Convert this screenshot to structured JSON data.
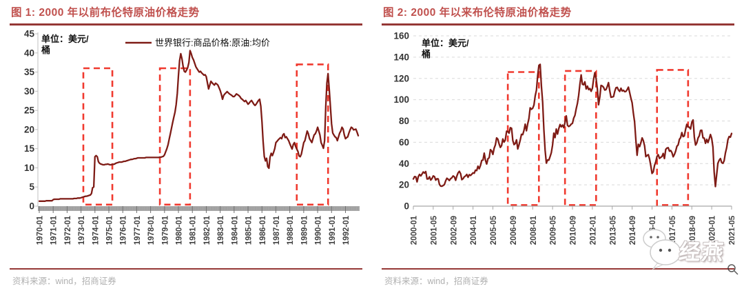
{
  "figures": [
    {
      "title": "图 1: 2000 年以前布伦特原油价格走势",
      "source": "资料来源：wind，招商证券"
    },
    {
      "title": "图 2: 2000 年以来布伦特原油价格走势",
      "source": "资料来源：wind，招商证券"
    }
  ],
  "watermark": {
    "text": "经燕"
  },
  "colors": {
    "line": "#7E1B15",
    "highlight_box": "#F0392E",
    "title_red": "#C0504D",
    "rule_red": "#953735",
    "axis_band_gray": "#A9A9A9",
    "grid_gray": "#D9D9D9",
    "label_gray": "#404040",
    "source_gray": "#B0B0B0"
  },
  "chart_data": [
    {
      "type": "line",
      "title": "图 1: 2000 年以前布伦特原油价格走势",
      "unit_line1": "单位：美元/",
      "unit_line2": "桶",
      "legend": [
        "世界银行:商品价格:原油:均价"
      ],
      "x_start": "1970-01",
      "frequency": "monthly",
      "x_tick_interval_months": 12,
      "x_tick_labels": [
        "1970-01",
        "1971-01",
        "1972-01",
        "1973-01",
        "1974-01",
        "1975-01",
        "1976-01",
        "1977-01",
        "1978-01",
        "1979-01",
        "1980-01",
        "1981-01",
        "1982-01",
        "1983-01",
        "1984-01",
        "1985-01",
        "1986-01",
        "1987-01",
        "1988-01",
        "1989-01",
        "1990-01",
        "1991-01",
        "1992-01"
      ],
      "ylim": [
        0,
        45
      ],
      "y_tick_step": 5,
      "grid": false,
      "gray_axis_band": true,
      "values": [
        1.3,
        1.3,
        1.3,
        1.3,
        1.3,
        1.3,
        1.4,
        1.4,
        1.4,
        1.4,
        1.4,
        1.4,
        1.7,
        1.8,
        1.8,
        1.8,
        1.8,
        1.8,
        1.9,
        1.9,
        1.9,
        1.9,
        1.9,
        1.9,
        1.9,
        1.9,
        1.9,
        1.9,
        1.9,
        1.9,
        2.0,
        2.0,
        2.0,
        2.1,
        2.1,
        2.1,
        2.2,
        2.3,
        2.4,
        2.5,
        2.6,
        2.6,
        2.7,
        2.8,
        2.9,
        3.3,
        4.8,
        5.0,
        12.9,
        13.2,
        12.9,
        11.6,
        11.2,
        11.0,
        10.9,
        10.8,
        10.8,
        10.9,
        10.9,
        11.0,
        10.9,
        10.8,
        10.8,
        10.9,
        10.9,
        11.0,
        11.2,
        11.3,
        11.4,
        11.5,
        11.5,
        11.5,
        11.6,
        11.7,
        11.7,
        11.8,
        11.9,
        12.0,
        12.1,
        12.2,
        12.2,
        12.3,
        12.4,
        12.4,
        12.5,
        12.6,
        12.6,
        12.6,
        12.6,
        12.6,
        12.6,
        12.6,
        12.7,
        12.7,
        12.7,
        12.7,
        12.7,
        12.7,
        12.7,
        12.7,
        12.7,
        12.7,
        12.7,
        12.7,
        12.8,
        12.8,
        12.9,
        13.0,
        13.4,
        14.2,
        15.0,
        16.0,
        17.5,
        18.9,
        20.3,
        21.8,
        23.2,
        24.5,
        26.5,
        29.5,
        34.0,
        38.0,
        39.8,
        38.5,
        36.5,
        35.2,
        35.0,
        35.5,
        36.2,
        37.5,
        40.6,
        39.8,
        38.8,
        38.2,
        37.3,
        36.4,
        35.9,
        35.4,
        35.0,
        35.2,
        34.8,
        34.5,
        34.2,
        34.3,
        33.8,
        32.2,
        30.6,
        31.6,
        32.6,
        32.2,
        31.9,
        31.6,
        32.1,
        31.9,
        31.6,
        30.9,
        30.2,
        29.2,
        27.9,
        28.9,
        29.3,
        29.6,
        29.9,
        29.6,
        29.3,
        29.1,
        28.9,
        28.6,
        28.6,
        28.9,
        29.3,
        29.1,
        28.9,
        28.6,
        28.1,
        27.9,
        27.6,
        27.3,
        27.6,
        27.1,
        26.6,
        26.9,
        27.3,
        27.6,
        27.1,
        26.6,
        26.3,
        26.6,
        27.1,
        27.6,
        27.9,
        26.1,
        22.0,
        17.0,
        13.0,
        11.8,
        12.5,
        10.3,
        9.9,
        12.8,
        13.8,
        13.2,
        14.0,
        15.0,
        16.6,
        16.9,
        17.3,
        17.6,
        17.9,
        17.6,
        18.6,
        18.9,
        17.9,
        18.1,
        17.6,
        17.1,
        16.3,
        15.6,
        14.9,
        16.1,
        16.6,
        15.6,
        14.9,
        14.3,
        13.1,
        12.9,
        13.6,
        15.1,
        16.6,
        17.1,
        18.3,
        19.6,
        18.9,
        17.6,
        17.1,
        16.6,
        17.6,
        18.6,
        18.9,
        19.6,
        20.6,
        19.6,
        18.6,
        16.6,
        15.9,
        15.1,
        17.1,
        26.1,
        32.1,
        34.6,
        30.6,
        26.1,
        21.5,
        19.1,
        18.6,
        18.1,
        17.9,
        17.1,
        18.1,
        19.1,
        19.6,
        20.6,
        20.1,
        18.6,
        17.6,
        17.9,
        18.1,
        19.1,
        19.9,
        20.6,
        20.4,
        19.9,
        20.0,
        20.1,
        19.3,
        18.4
      ],
      "highlight_boxes": [
        {
          "from": "1973-03",
          "to": "1975-04",
          "y_bottom": 0.4,
          "y_top": 36
        },
        {
          "from": "1978-09",
          "to": "1980-11",
          "y_bottom": 0.4,
          "y_top": 36
        },
        {
          "from": "1988-07",
          "to": "1990-10",
          "y_bottom": 0.4,
          "y_top": 37
        }
      ]
    },
    {
      "type": "line",
      "title": "图 2: 2000 年以来布伦特原油价格走势",
      "unit_line1": "单位：美元/",
      "unit_line2": "桶",
      "legend": [],
      "x_start": "2000-01",
      "frequency": "monthly",
      "x_tick_interval_months": 16,
      "x_tick_labels": [
        "2000-01",
        "2001-05",
        "2002-09",
        "2004-01",
        "2005-05",
        "2006-09",
        "2008-01",
        "2009-05",
        "2010-09",
        "2012-01",
        "2013-05",
        "2014-09",
        "2016-01",
        "2017-05",
        "2018-09",
        "2020-01",
        "2021-05"
      ],
      "ylim": [
        0,
        160
      ],
      "y_tick_step": 20,
      "grid": true,
      "gray_axis_band": false,
      "values": [
        25.5,
        27.8,
        27.5,
        22.8,
        27.7,
        29.8,
        28.4,
        30.1,
        32.1,
        31.0,
        32.5,
        25.5,
        25.6,
        27.5,
        24.5,
        25.9,
        28.4,
        27.8,
        24.4,
        25.7,
        25.6,
        20.4,
        18.8,
        18.7,
        19.4,
        20.3,
        23.7,
        26.2,
        25.3,
        24.1,
        25.8,
        26.6,
        28.4,
        27.5,
        24.3,
        28.3,
        31.3,
        32.7,
        30.5,
        24.9,
        25.8,
        27.6,
        28.4,
        29.8,
        27.1,
        29.6,
        28.8,
        29.9,
        31.3,
        30.9,
        33.8,
        33.4,
        37.6,
        35.1,
        38.3,
        43.0,
        43.2,
        49.8,
        43.1,
        39.6,
        44.5,
        45.5,
        53.1,
        51.9,
        48.6,
        54.4,
        57.5,
        64.1,
        62.9,
        58.5,
        55.2,
        56.9,
        63.1,
        60.2,
        62.1,
        70.4,
        70.0,
        68.6,
        73.7,
        73.2,
        61.7,
        57.8,
        58.9,
        62.3,
        53.7,
        57.6,
        62.1,
        67.5,
        67.2,
        71.1,
        77.0,
        70.8,
        77.2,
        82.3,
        92.4,
        91.0,
        92.0,
        95.0,
        103.6,
        109.0,
        122.7,
        132.3,
        133.2,
        113.0,
        97.8,
        71.9,
        52.5,
        40.4,
        43.4,
        43.2,
        46.5,
        50.2,
        57.3,
        68.6,
        64.4,
        72.5,
        67.7,
        72.8,
        76.7,
        74.5,
        76.2,
        73.7,
        78.8,
        84.8,
        75.9,
        74.8,
        75.6,
        77.1,
        77.8,
        82.7,
        85.3,
        91.4,
        96.5,
        104.0,
        114.6,
        123.3,
        114.5,
        114.0,
        116.8,
        110.1,
        112.8,
        109.5,
        110.5,
        107.9,
        110.7,
        119.3,
        125.4,
        119.7,
        110.3,
        95.2,
        102.6,
        113.4,
        112.9,
        111.7,
        109.1,
        109.5,
        112.3,
        116.1,
        108.5,
        102.3,
        102.6,
        102.9,
        107.9,
        111.3,
        111.6,
        109.1,
        107.8,
        110.8,
        108.1,
        108.9,
        107.5,
        107.8,
        109.5,
        111.8,
        106.8,
        101.6,
        97.1,
        87.4,
        79.0,
        62.3,
        47.8,
        58.1,
        55.9,
        59.5,
        64.1,
        61.5,
        56.6,
        46.5,
        47.6,
        48.4,
        44.3,
        38.0,
        30.7,
        32.2,
        38.2,
        41.6,
        46.7,
        48.3,
        44.9,
        45.8,
        46.6,
        49.5,
        44.7,
        53.3,
        54.6,
        54.9,
        51.6,
        52.3,
        50.3,
        46.4,
        48.5,
        51.7,
        56.2,
        57.5,
        62.7,
        64.4,
        69.1,
        65.3,
        66.0,
        72.1,
        76.9,
        74.4,
        74.2,
        72.5,
        78.9,
        81.0,
        64.8,
        57.4,
        59.4,
        64.0,
        66.1,
        71.2,
        71.3,
        64.2,
        63.9,
        59.0,
        62.8,
        59.7,
        63.2,
        67.3,
        63.7,
        55.5,
        32.0,
        18.4,
        29.4,
        40.3,
        43.2,
        44.7,
        40.9,
        40.2,
        42.7,
        49.9,
        54.8,
        62.3,
        65.4,
        64.8,
        68.3
      ],
      "highlight_boxes": [
        {
          "from": "2006-05",
          "to": "2008-06",
          "y_bottom": 1,
          "y_top": 126
        },
        {
          "from": "2010-03",
          "to": "2012-04",
          "y_bottom": 1,
          "y_top": 127
        },
        {
          "from": "2016-05",
          "to": "2018-06",
          "y_bottom": 1,
          "y_top": 128
        }
      ]
    }
  ]
}
